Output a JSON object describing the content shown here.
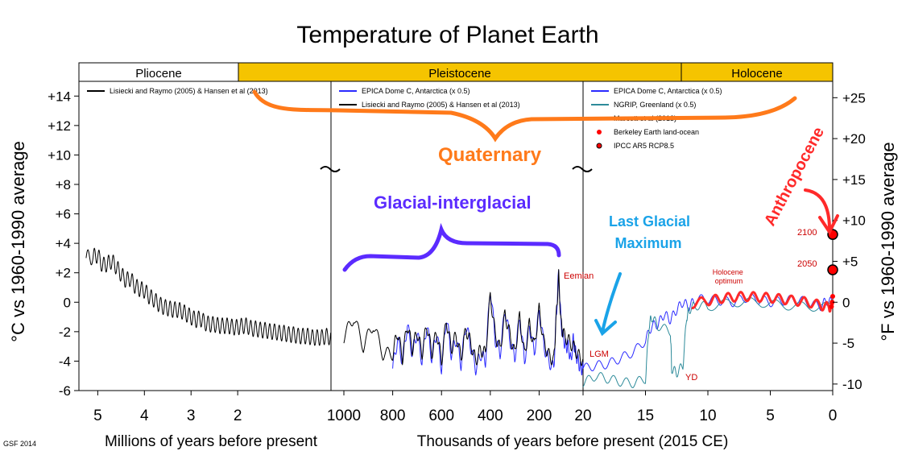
{
  "chart_data": {
    "type": "line",
    "title": "Temperature of Planet Earth",
    "credit": "GSF 2014",
    "epochs": [
      {
        "name": "Pliocene",
        "color": "#ffffff"
      },
      {
        "name": "Pleistocene",
        "color": "#f5c400"
      },
      {
        "name": "Holocene",
        "color": "#f5c400"
      }
    ],
    "y_left": {
      "label": "°C vs 1960-1990 average",
      "ylim": [
        -6,
        15
      ],
      "ticks": [
        "+14",
        "+12",
        "+10",
        "+8",
        "+6",
        "+4",
        "+2",
        "0",
        "-2",
        "-4",
        "-6"
      ],
      "tick_values": [
        14,
        12,
        10,
        8,
        6,
        4,
        2,
        0,
        -2,
        -4,
        -6
      ]
    },
    "y_right": {
      "label": "°F vs 1960-1990 average",
      "ticks": [
        "+25",
        "+20",
        "+15",
        "+10",
        "+5",
        "0",
        "-5",
        "-10"
      ],
      "tick_values": [
        25,
        20,
        15,
        10,
        5,
        0,
        -5,
        -10
      ]
    },
    "panels": [
      {
        "xlabel": "Millions of years before present",
        "xlim": [
          5.3,
          0.0
        ],
        "x_ticks": [
          "5",
          "4",
          "3",
          "2"
        ],
        "x_tick_values": [
          5,
          4,
          3,
          2
        ],
        "legend": [
          {
            "label": "Lisiecki and Raymo (2005) & Hansen et al (2013)",
            "color": "#000000"
          }
        ],
        "series": [
          {
            "name": "Lisiecki and Raymo (2005) & Hansen et al (2013)",
            "color": "#000000",
            "x": [
              5.25,
              5.1,
              5.0,
              4.9,
              4.8,
              4.7,
              4.6,
              4.5,
              4.4,
              4.3,
              4.2,
              4.1,
              4.0,
              3.9,
              3.8,
              3.7,
              3.6,
              3.5,
              3.4,
              3.3,
              3.2,
              3.1,
              3.0,
              2.9,
              2.8,
              2.7,
              2.6,
              2.5,
              2.4,
              2.3,
              2.2,
              2.1,
              2.0,
              1.9,
              1.8,
              1.7,
              1.6,
              1.5,
              1.4,
              1.3,
              1.2,
              1.1,
              1.0,
              0.9,
              0.8,
              0.7,
              0.6,
              0.5,
              0.4,
              0.3,
              0.2,
              0.1,
              0.0
            ],
            "y": [
              3.0,
              3.1,
              3.2,
              2.5,
              2.6,
              2.8,
              2.4,
              1.9,
              1.5,
              1.6,
              1.1,
              0.9,
              0.8,
              0.4,
              0.2,
              -0.1,
              -0.3,
              -0.4,
              -0.5,
              -0.5,
              -0.6,
              -0.8,
              -1.0,
              -1.2,
              -1.1,
              -1.4,
              -1.5,
              -1.5,
              -1.6,
              -1.6,
              -1.6,
              -1.7,
              -1.7,
              -1.6,
              -1.6,
              -1.8,
              -1.8,
              -1.9,
              -1.9,
              -2.0,
              -2.0,
              -2.1,
              -2.1,
              -2.2,
              -2.2,
              -2.3,
              -2.3,
              -2.3,
              -2.4,
              -2.4,
              -2.4,
              -2.3,
              -2.4
            ]
          }
        ]
      },
      {
        "xlabel": "Thousands of years before present (2015 CE)",
        "xlim": [
          1000,
          20
        ],
        "x_ticks": [
          "1000",
          "800",
          "600",
          "400",
          "200"
        ],
        "x_tick_values": [
          1000,
          800,
          600,
          400,
          200
        ],
        "legend": [
          {
            "label": "EPICA Dome C, Antarctica (x 0.5)",
            "color": "#2b2bff"
          },
          {
            "label": "Lisiecki and Raymo (2005) & Hansen et al (2013)",
            "color": "#000000"
          }
        ],
        "series": [
          {
            "name": "EPICA Dome C, Antarctica (x 0.5)",
            "color": "#2b2bff",
            "x": [
              800,
              780,
              760,
              740,
              720,
              700,
              680,
              660,
              640,
              620,
              600,
              580,
              560,
              540,
              520,
              500,
              480,
              460,
              440,
              420,
              400,
              380,
              360,
              340,
              320,
              300,
              280,
              260,
              240,
              220,
              200,
              180,
              160,
              140,
              130,
              120,
              110,
              100,
              90,
              80,
              70,
              60,
              50,
              40,
              30,
              20
            ],
            "y": [
              -4.5,
              -2.5,
              -4.0,
              -1.5,
              -3.5,
              -2.0,
              -4.0,
              -1.5,
              -3.8,
              -2.0,
              -4.5,
              -1.0,
              -3.5,
              -2.5,
              -4.2,
              -1.5,
              -3.0,
              -4.5,
              -3.5,
              -4.0,
              1.0,
              -2.5,
              -3.5,
              -0.5,
              -2.5,
              -3.8,
              -1.0,
              -4.0,
              -1.5,
              -3.5,
              -0.5,
              -3.0,
              -4.0,
              -4.5,
              -1.0,
              2.0,
              -1.5,
              -2.5,
              -3.0,
              -3.0,
              -4.0,
              -2.5,
              -3.5,
              -4.0,
              -4.5,
              -4.5
            ]
          },
          {
            "name": "Lisiecki and Raymo (2005) & Hansen et al (2013)",
            "color": "#000000",
            "x": [
              1000,
              960,
              920,
              880,
              840,
              800,
              780,
              760,
              740,
              720,
              700,
              680,
              660,
              640,
              620,
              600,
              580,
              560,
              540,
              520,
              500,
              480,
              460,
              440,
              420,
              400,
              380,
              360,
              340,
              320,
              300,
              280,
              260,
              240,
              220,
              200,
              180,
              160,
              140,
              130,
              120,
              110,
              100,
              80,
              60,
              40,
              20
            ],
            "y": [
              -2.4,
              -1.0,
              -3.0,
              -1.5,
              -3.5,
              -3.5,
              -2.0,
              -3.8,
              -1.5,
              -3.2,
              -2.0,
              -3.5,
              -1.5,
              -3.5,
              -2.0,
              -4.0,
              -1.2,
              -3.2,
              -2.2,
              -3.8,
              -1.8,
              -2.8,
              -4.0,
              -3.2,
              -3.5,
              0.5,
              -2.2,
              -3.2,
              -0.8,
              -2.2,
              -3.5,
              -1.0,
              -3.6,
              -1.5,
              -3.0,
              -0.5,
              -2.8,
              -3.6,
              -4.0,
              -1.0,
              1.8,
              -1.5,
              -2.2,
              -2.6,
              -3.0,
              -3.6,
              -4.0
            ]
          }
        ]
      },
      {
        "xlabel": "",
        "xlim": [
          20,
          0
        ],
        "x_ticks": [
          "20",
          "15",
          "10",
          "5",
          "0"
        ],
        "x_tick_values": [
          20,
          15,
          10,
          5,
          0
        ],
        "legend": [
          {
            "label": "EPICA Dome C, Antarctica (x 0.5)",
            "color": "#2b2bff"
          },
          {
            "label": "NGRIP, Greenland (x 0.5)",
            "color": "#2e8b9a"
          },
          {
            "label": "Marcott et al (2013)",
            "color": "#ff2a2a"
          },
          {
            "label": "Berkeley Earth land-ocean",
            "color": "#ff0000"
          },
          {
            "label": "IPCC AR5 RCP8.5",
            "color": "#000000"
          }
        ],
        "series": [
          {
            "name": "EPICA Dome C, Antarctica (x 0.5)",
            "color": "#2b2bff",
            "x": [
              20,
              19,
              18,
              17,
              16,
              15,
              14.5,
              14,
              13.5,
              13,
              12.5,
              12,
              11.5,
              11,
              10,
              9,
              8,
              7,
              6,
              5,
              4,
              3,
              2,
              1,
              0.5,
              0
            ],
            "y": [
              -4.5,
              -4.3,
              -4.2,
              -3.8,
              -3.4,
              -2.6,
              -1.6,
              -1.5,
              -0.8,
              -1.2,
              -0.5,
              0.0,
              -0.3,
              0.2,
              0.2,
              0.1,
              0.0,
              0.3,
              0.2,
              0.0,
              0.1,
              0.2,
              0.0,
              -0.3,
              0.1,
              0.0
            ]
          },
          {
            "name": "NGRIP, Greenland (x 0.5)",
            "color": "#2e8b9a",
            "x": [
              20,
              19,
              18,
              17,
              16,
              15,
              14.7,
              14.5,
              14,
              13,
              12.9,
              12.5,
              12,
              11.7,
              11.5,
              11,
              10,
              8,
              6,
              4,
              2,
              0
            ],
            "y": [
              -5.5,
              -5.0,
              -5.2,
              -5.4,
              -5.5,
              -5.2,
              -1.5,
              -1.0,
              -1.6,
              -2.0,
              -4.5,
              -4.8,
              -4.3,
              -1.0,
              -0.5,
              -0.2,
              -0.3,
              0.0,
              0.0,
              -0.2,
              -0.3,
              -0.3
            ]
          },
          {
            "name": "Marcott et al (2013)",
            "color": "#ff2a2a",
            "x": [
              11.3,
              10,
              9,
              8,
              7,
              6,
              5,
              4,
              3,
              2,
              1,
              0.3,
              0
            ],
            "y": [
              -0.1,
              0.1,
              0.25,
              0.35,
              0.4,
              0.35,
              0.3,
              0.2,
              0.1,
              0.0,
              -0.2,
              -0.35,
              -0.2
            ]
          }
        ],
        "points": [
          {
            "name": "Berkeley Earth land-ocean",
            "color": "#ff0000",
            "x": [
              0.1,
              0.05,
              0.0
            ],
            "y": [
              -0.3,
              0.0,
              0.4
            ]
          },
          {
            "name": "IPCC AR5 RCP8.5",
            "color": "#000000",
            "x": [
              0.0,
              0.0
            ],
            "y": [
              2.2,
              4.6
            ]
          }
        ]
      }
    ],
    "annotations": [
      {
        "text": "Quaternary",
        "color": "#ff7a1a"
      },
      {
        "text": "Glacial-interglacial",
        "color": "#5b2bff"
      },
      {
        "text": "Last Glacial Maximum",
        "color": "#1aa3e8"
      },
      {
        "text": "Anthropocene",
        "color": "#ff2a2a"
      },
      {
        "text": "Eemian",
        "color": "#cc0000"
      },
      {
        "text": "LGM",
        "color": "#cc0000"
      },
      {
        "text": "YD",
        "color": "#cc0000"
      },
      {
        "text": "Holocene optimum",
        "color": "#cc0000"
      },
      {
        "text": "2100",
        "color": "#cc0000"
      },
      {
        "text": "2050",
        "color": "#cc0000"
      }
    ]
  }
}
